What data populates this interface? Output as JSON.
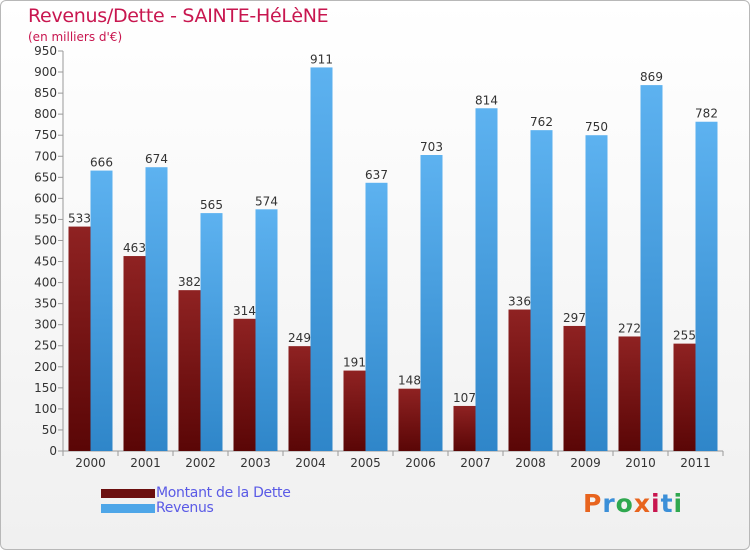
{
  "header": {
    "title": "Revenus/Dette - SAINTE-HéLèNE",
    "subtitle": "(en milliers d'€)"
  },
  "chart_data": {
    "type": "bar",
    "title": "Revenus/Dette - SAINTE-HéLèNE",
    "ylabel": "(en milliers d'€)",
    "xlabel": "",
    "categories": [
      "2000",
      "2001",
      "2002",
      "2003",
      "2004",
      "2005",
      "2006",
      "2007",
      "2008",
      "2009",
      "2010",
      "2011"
    ],
    "series": [
      {
        "name": "Montant de la Dette",
        "color": "#7a1616",
        "values": [
          533,
          463,
          382,
          314,
          249,
          191,
          148,
          107,
          336,
          297,
          272,
          255
        ]
      },
      {
        "name": "Revenus",
        "color": "#4ea6e8",
        "values": [
          666,
          674,
          565,
          574,
          911,
          637,
          703,
          814,
          762,
          750,
          869,
          782
        ]
      }
    ],
    "ylim": [
      0,
      950
    ],
    "ytick_step": 50,
    "grid": false,
    "legend": "bottom-left"
  },
  "legend": {
    "items": [
      {
        "label": "Montant de la Dette",
        "color": "#6b0f0f"
      },
      {
        "label": "Revenus",
        "color": "#4ea6e8"
      }
    ]
  },
  "logo": {
    "text": "Proxiti"
  }
}
